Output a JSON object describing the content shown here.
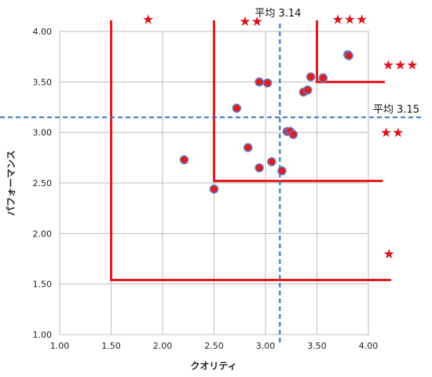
{
  "chart_data": {
    "type": "scatter",
    "xlabel": "クオリティ",
    "ylabel": "パフォーマンス",
    "xlim": [
      1.0,
      4.0
    ],
    "ylim": [
      1.0,
      4.0
    ],
    "xticks": [
      "1.00",
      "1.50",
      "2.00",
      "2.50",
      "3.00",
      "3.50",
      "4.00"
    ],
    "yticks": [
      "1.00",
      "1.50",
      "2.00",
      "2.50",
      "3.00",
      "3.50",
      "4.00"
    ],
    "grid": true,
    "point_color": "#e41a1c",
    "point_edge": "#5b7fc6",
    "points": [
      {
        "x": 2.21,
        "y": 2.73
      },
      {
        "x": 2.5,
        "y": 2.44
      },
      {
        "x": 2.72,
        "y": 3.24
      },
      {
        "x": 2.83,
        "y": 2.85
      },
      {
        "x": 2.94,
        "y": 2.65
      },
      {
        "x": 2.94,
        "y": 3.5
      },
      {
        "x": 3.02,
        "y": 3.49
      },
      {
        "x": 3.06,
        "y": 2.71
      },
      {
        "x": 3.16,
        "y": 2.62
      },
      {
        "x": 3.21,
        "y": 3.01
      },
      {
        "x": 3.24,
        "y": 3.01
      },
      {
        "x": 3.27,
        "y": 2.98
      },
      {
        "x": 3.37,
        "y": 3.4
      },
      {
        "x": 3.41,
        "y": 3.42
      },
      {
        "x": 3.44,
        "y": 3.55
      },
      {
        "x": 3.56,
        "y": 3.54
      },
      {
        "x": 3.8,
        "y": 3.77
      },
      {
        "x": 3.81,
        "y": 3.76
      }
    ],
    "averages": {
      "x": {
        "value": 3.14,
        "label": "平均 3.14"
      },
      "y": {
        "value": 3.15,
        "label": "平均 3.15"
      }
    },
    "average_line_color": "#2e6fc0",
    "region_color": "#e41a1c",
    "regions": [
      {
        "x": 1.5,
        "y": 1.54,
        "y_top": 4.11,
        "x_right": 4.22
      },
      {
        "x": 2.5,
        "y": 2.52,
        "y_top": 4.11,
        "x_right": 4.14
      },
      {
        "x": 3.5,
        "y": 3.5,
        "y_top": 4.11,
        "x_right": 4.16
      }
    ],
    "stars": [
      {
        "text": "★",
        "x": 1.86,
        "y": 4.12
      },
      {
        "text": "★★",
        "x": 2.86,
        "y": 4.1
      },
      {
        "text": "★★★",
        "x": 3.82,
        "y": 4.12
      },
      {
        "text": "★",
        "x": 4.2,
        "y": 1.8
      },
      {
        "text": "★★",
        "x": 4.23,
        "y": 3.0
      },
      {
        "text": "★★★",
        "x": 4.31,
        "y": 3.67
      }
    ]
  }
}
